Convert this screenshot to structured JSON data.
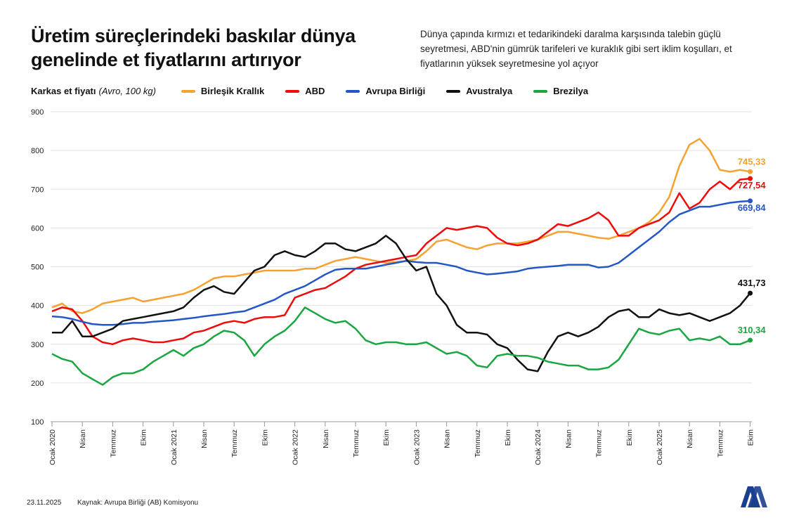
{
  "header": {
    "title": "Üretim süreçlerindeki baskılar dünya genelinde et fiyatlarını artırıyor",
    "subtitle": "Dünya çapında kırmızı et tedarikindeki daralma karşısında talebin güçlü seyretmesi, ABD'nin gümrük tarifeleri ve kuraklık gibi sert iklim koşulları, et fiyatlarının yüksek seyretmesine yol açıyor"
  },
  "footer": {
    "date": "23.11.2025",
    "source": "Kaynak: Avrupa Birliği (AB) Komisyonu",
    "logo_text": "AA"
  },
  "chart_data": {
    "type": "line",
    "ylabel": "Karkas et fiyatı",
    "yunit": "(Avro, 100 kg)",
    "ylim": [
      100,
      900
    ],
    "yticks": [
      900,
      800,
      700,
      600,
      500,
      400,
      300,
      200,
      100
    ],
    "grid": true,
    "legend_position": "top",
    "x_start": "2020-01",
    "x_frequency": "monthly",
    "xtick_labels": [
      "Ocak 2020",
      "Nisan",
      "Temmuz",
      "Ekim",
      "Ocak 2021",
      "Nisan",
      "Temmuz",
      "Ekim",
      "Ocak 2022",
      "Nisan",
      "Temmuz",
      "Ekim",
      "Ocak 2023",
      "Nisan",
      "Temmuz",
      "Ekim",
      "Ocak 2024",
      "Nisan",
      "Temmuz",
      "Ekim",
      "Ocak 2025",
      "Nisan",
      "Temmuz",
      "Ekim"
    ],
    "series": [
      {
        "name": "Birleşik Krallık",
        "color": "#f5a230",
        "end_label": "745,33",
        "values": [
          395,
          405,
          385,
          380,
          390,
          405,
          410,
          415,
          420,
          410,
          415,
          420,
          425,
          430,
          440,
          455,
          470,
          475,
          475,
          480,
          485,
          490,
          490,
          490,
          490,
          495,
          495,
          505,
          515,
          520,
          525,
          520,
          515,
          510,
          512,
          515,
          520,
          540,
          565,
          570,
          560,
          550,
          545,
          555,
          560,
          560,
          560,
          565,
          570,
          580,
          590,
          590,
          585,
          580,
          575,
          572,
          580,
          590,
          600,
          615,
          640,
          680,
          760,
          815,
          830,
          800,
          750,
          745,
          750,
          745.33
        ]
      },
      {
        "name": "ABD",
        "color": "#f00a0a",
        "end_label": "727,54",
        "values": [
          385,
          395,
          390,
          360,
          320,
          305,
          300,
          310,
          315,
          310,
          305,
          305,
          310,
          315,
          330,
          335,
          345,
          355,
          360,
          355,
          365,
          370,
          370,
          375,
          420,
          430,
          440,
          445,
          460,
          475,
          495,
          505,
          510,
          515,
          520,
          525,
          530,
          560,
          580,
          600,
          595,
          600,
          605,
          600,
          575,
          560,
          555,
          560,
          570,
          590,
          610,
          605,
          615,
          625,
          640,
          620,
          580,
          580,
          600,
          610,
          620,
          640,
          690,
          650,
          665,
          700,
          720,
          700,
          725,
          727.54
        ]
      },
      {
        "name": "Avrupa Birliği",
        "color": "#2457c5",
        "end_label": "669,84",
        "values": [
          372,
          370,
          365,
          358,
          352,
          350,
          350,
          352,
          355,
          355,
          358,
          360,
          362,
          365,
          368,
          372,
          375,
          378,
          382,
          385,
          395,
          405,
          415,
          430,
          440,
          450,
          465,
          480,
          492,
          495,
          495,
          495,
          500,
          505,
          510,
          515,
          512,
          510,
          510,
          505,
          500,
          490,
          485,
          480,
          482,
          485,
          488,
          495,
          498,
          500,
          502,
          505,
          505,
          505,
          498,
          500,
          510,
          530,
          550,
          570,
          590,
          615,
          635,
          645,
          655,
          655,
          660,
          665,
          668,
          669.84
        ]
      },
      {
        "name": "Avustralya",
        "color": "#111111",
        "end_label": "431,73",
        "values": [
          330,
          330,
          360,
          320,
          320,
          330,
          340,
          360,
          365,
          370,
          375,
          380,
          385,
          395,
          420,
          440,
          450,
          435,
          430,
          460,
          490,
          500,
          530,
          540,
          530,
          525,
          540,
          560,
          560,
          545,
          540,
          550,
          560,
          580,
          560,
          520,
          490,
          500,
          430,
          400,
          350,
          330,
          330,
          325,
          300,
          290,
          260,
          235,
          230,
          280,
          320,
          330,
          320,
          330,
          345,
          370,
          385,
          390,
          370,
          370,
          390,
          380,
          375,
          380,
          370,
          360,
          370,
          380,
          400,
          431.73
        ]
      },
      {
        "name": "Brezilya",
        "color": "#1aa640",
        "end_label": "310,34",
        "values": [
          275,
          262,
          255,
          225,
          210,
          195,
          215,
          225,
          225,
          235,
          255,
          270,
          285,
          270,
          290,
          300,
          320,
          335,
          330,
          310,
          270,
          300,
          320,
          335,
          360,
          395,
          380,
          365,
          355,
          360,
          340,
          310,
          300,
          305,
          305,
          300,
          300,
          305,
          290,
          275,
          280,
          270,
          245,
          240,
          270,
          275,
          270,
          270,
          265,
          255,
          250,
          245,
          245,
          235,
          235,
          240,
          260,
          300,
          340,
          330,
          325,
          335,
          340,
          310,
          315,
          310,
          320,
          300,
          300,
          310.34
        ]
      }
    ]
  }
}
